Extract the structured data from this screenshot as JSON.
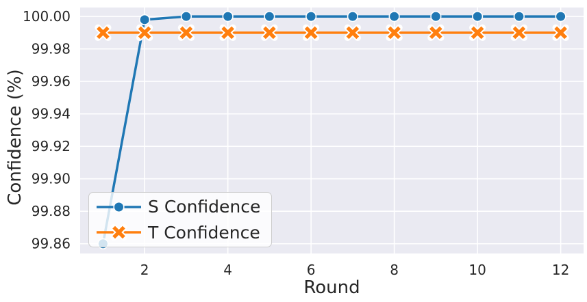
{
  "chart_data": {
    "type": "line",
    "title": "",
    "xlabel": "Round",
    "ylabel": "Confidence (%)",
    "x": [
      1,
      2,
      3,
      4,
      5,
      6,
      7,
      8,
      9,
      10,
      11,
      12
    ],
    "series": [
      {
        "name": "S Confidence",
        "color": "#1f77b4",
        "marker": "circle",
        "values": [
          99.86,
          99.998,
          100.0,
          100.0,
          100.0,
          100.0,
          100.0,
          100.0,
          100.0,
          100.0,
          100.0,
          100.0
        ]
      },
      {
        "name": "T Confidence",
        "color": "#ff7f0e",
        "marker": "x",
        "values": [
          99.99,
          99.99,
          99.99,
          99.99,
          99.99,
          99.99,
          99.99,
          99.99,
          99.99,
          99.99,
          99.99,
          99.99
        ]
      }
    ],
    "xlim": [
      0.45,
      12.55
    ],
    "ylim": [
      99.854,
      100.0055
    ],
    "xticks": [
      2,
      4,
      6,
      8,
      10,
      12
    ],
    "xtick_labels": [
      "2",
      "4",
      "6",
      "8",
      "10",
      "12"
    ],
    "yticks": [
      99.86,
      99.88,
      99.9,
      99.92,
      99.94,
      99.96,
      99.98,
      100.0
    ],
    "ytick_labels": [
      "99.86",
      "99.88",
      "99.90",
      "99.92",
      "99.94",
      "99.96",
      "99.98",
      "100.00"
    ],
    "grid": true,
    "legend_position": "lower-left",
    "colors": {
      "plot_background": "#eaeaf2",
      "grid": "#ffffff",
      "text": "#262626",
      "legend_border": "#cccccc"
    }
  }
}
